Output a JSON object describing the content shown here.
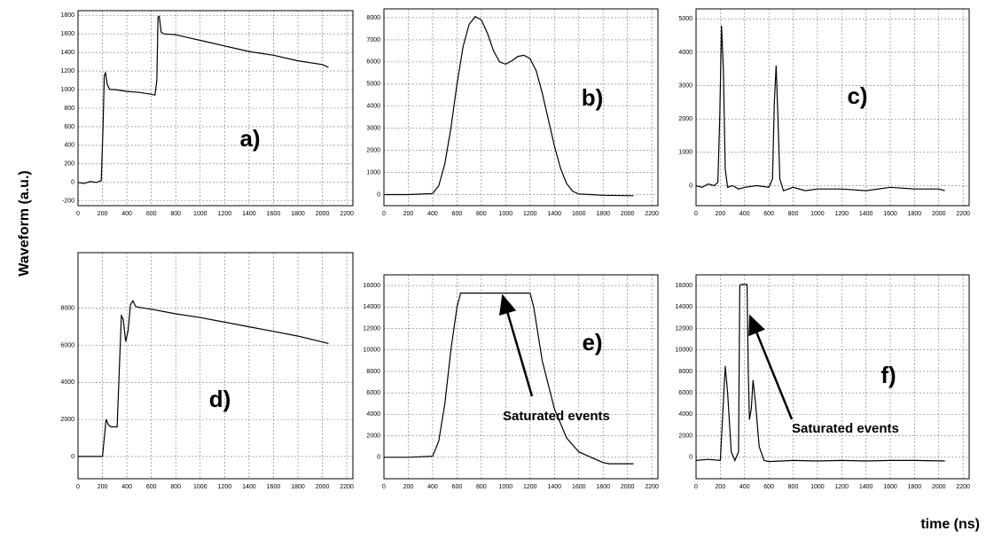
{
  "figure": {
    "ylabel": "Waveform (a.u.)",
    "xlabel": "time (ns)"
  },
  "chart_data": [
    {
      "type": "line",
      "label": "a)",
      "color": "#000000",
      "grid": true,
      "x": [
        0,
        50,
        100,
        150,
        190,
        205,
        215,
        225,
        240,
        260,
        300,
        400,
        500,
        600,
        630,
        645,
        655,
        665,
        680,
        700,
        800,
        900,
        1000,
        1200,
        1400,
        1600,
        1800,
        2000,
        2050
      ],
      "values": [
        0,
        -10,
        10,
        0,
        20,
        600,
        1150,
        1180,
        1050,
        1000,
        1000,
        980,
        970,
        950,
        940,
        1100,
        1780,
        1790,
        1620,
        1600,
        1590,
        1560,
        1530,
        1470,
        1410,
        1370,
        1310,
        1270,
        1240
      ],
      "xlim": [
        0,
        2250
      ],
      "xticks": [
        0,
        200,
        400,
        600,
        800,
        1000,
        1200,
        1400,
        1600,
        1800,
        2000,
        2200
      ],
      "ylim": [
        -250,
        1850
      ],
      "yticks": [
        -200,
        0,
        200,
        400,
        600,
        800,
        1000,
        1200,
        1400,
        1600,
        1800
      ]
    },
    {
      "type": "line",
      "label": "b)",
      "color": "#000000",
      "grid": true,
      "x": [
        0,
        200,
        400,
        450,
        500,
        550,
        600,
        650,
        700,
        750,
        800,
        850,
        900,
        950,
        1000,
        1050,
        1100,
        1150,
        1200,
        1250,
        1300,
        1350,
        1400,
        1450,
        1500,
        1550,
        1600,
        1700,
        1800,
        2050
      ],
      "values": [
        0,
        0,
        50,
        400,
        1400,
        3000,
        5000,
        6700,
        7700,
        8050,
        7900,
        7300,
        6500,
        6000,
        5900,
        6050,
        6250,
        6300,
        6150,
        5600,
        4600,
        3400,
        2200,
        1200,
        500,
        150,
        30,
        0,
        -30,
        -50
      ],
      "xlim": [
        0,
        2250
      ],
      "xticks": [
        0,
        200,
        400,
        600,
        800,
        1000,
        1200,
        1400,
        1600,
        1800,
        2000,
        2200
      ],
      "ylim": [
        -500,
        8400
      ],
      "yticks": [
        0,
        1000,
        2000,
        3000,
        4000,
        5000,
        6000,
        7000,
        8000
      ]
    },
    {
      "type": "line",
      "label": "c)",
      "color": "#000000",
      "grid": true,
      "x": [
        0,
        50,
        100,
        150,
        180,
        195,
        210,
        225,
        240,
        260,
        300,
        350,
        400,
        500,
        600,
        630,
        645,
        660,
        675,
        690,
        720,
        800,
        900,
        1000,
        1200,
        1400,
        1600,
        1800,
        2000,
        2050
      ],
      "values": [
        0,
        -50,
        50,
        0,
        100,
        2000,
        4800,
        3500,
        500,
        -50,
        0,
        -100,
        -50,
        0,
        -50,
        200,
        2500,
        3600,
        2000,
        200,
        -150,
        -50,
        -150,
        -100,
        -100,
        -150,
        -50,
        -100,
        -100,
        -150
      ],
      "xlim": [
        0,
        2250
      ],
      "xticks": [
        0,
        200,
        400,
        600,
        800,
        1000,
        1200,
        1400,
        1600,
        1800,
        2000,
        2200
      ],
      "ylim": [
        -600,
        5300
      ],
      "yticks": [
        0,
        1000,
        2000,
        3000,
        4000,
        5000
      ]
    },
    {
      "type": "line",
      "label": "d)",
      "color": "#000000",
      "grid": true,
      "x": [
        0,
        100,
        200,
        215,
        230,
        250,
        270,
        300,
        320,
        340,
        355,
        370,
        390,
        410,
        430,
        450,
        470,
        500,
        600,
        800,
        1000,
        1200,
        1400,
        1600,
        1800,
        2050
      ],
      "values": [
        0,
        0,
        0,
        1000,
        2000,
        1700,
        1600,
        1600,
        1600,
        5000,
        7600,
        7400,
        6200,
        6800,
        8200,
        8400,
        8100,
        8050,
        7950,
        7700,
        7500,
        7250,
        7000,
        6750,
        6500,
        6100
      ],
      "xlim": [
        0,
        2250
      ],
      "xticks": [
        0,
        200,
        400,
        600,
        800,
        1000,
        1200,
        1400,
        1600,
        1800,
        2000,
        2200
      ],
      "ylim": [
        -1200,
        11000
      ],
      "yticks": [
        0,
        2000,
        4000,
        6000,
        8000
      ]
    },
    {
      "type": "line",
      "label": "e)",
      "annotation": "Saturated events",
      "color": "#000000",
      "grid": true,
      "x": [
        0,
        200,
        400,
        450,
        500,
        550,
        600,
        630,
        700,
        800,
        900,
        1000,
        1100,
        1200,
        1230,
        1300,
        1400,
        1500,
        1600,
        1700,
        1800,
        1850,
        2050
      ],
      "values": [
        0,
        0,
        100,
        1500,
        5000,
        10000,
        14000,
        15300,
        15300,
        15300,
        15300,
        15300,
        15300,
        15300,
        14000,
        9000,
        4500,
        1800,
        500,
        0,
        -500,
        -600,
        -600
      ],
      "xlim": [
        0,
        2250
      ],
      "xticks": [
        0,
        200,
        400,
        600,
        800,
        1000,
        1200,
        1400,
        1600,
        1800,
        2000,
        2200
      ],
      "ylim": [
        -2000,
        17000
      ],
      "yticks": [
        0,
        2000,
        4000,
        6000,
        8000,
        10000,
        12000,
        14000,
        16000
      ]
    },
    {
      "type": "line",
      "label": "f)",
      "annotation": "Saturated events",
      "color": "#000000",
      "grid": true,
      "x": [
        0,
        100,
        200,
        220,
        240,
        260,
        290,
        320,
        350,
        360,
        370,
        420,
        430,
        440,
        455,
        470,
        490,
        520,
        560,
        600,
        800,
        1000,
        1200,
        1400,
        1600,
        1800,
        2050
      ],
      "values": [
        -300,
        -200,
        -300,
        4000,
        8500,
        6000,
        500,
        -300,
        500,
        16000,
        16100,
        16100,
        8000,
        3500,
        4500,
        7200,
        5000,
        1000,
        -300,
        -400,
        -300,
        -350,
        -300,
        -350,
        -300,
        -300,
        -350
      ],
      "xlim": [
        0,
        2250
      ],
      "xticks": [
        0,
        200,
        400,
        600,
        800,
        1000,
        1200,
        1400,
        1600,
        1800,
        2000,
        2200
      ],
      "ylim": [
        -2000,
        17000
      ],
      "yticks": [
        0,
        2000,
        4000,
        6000,
        8000,
        10000,
        12000,
        14000,
        16000
      ]
    }
  ]
}
